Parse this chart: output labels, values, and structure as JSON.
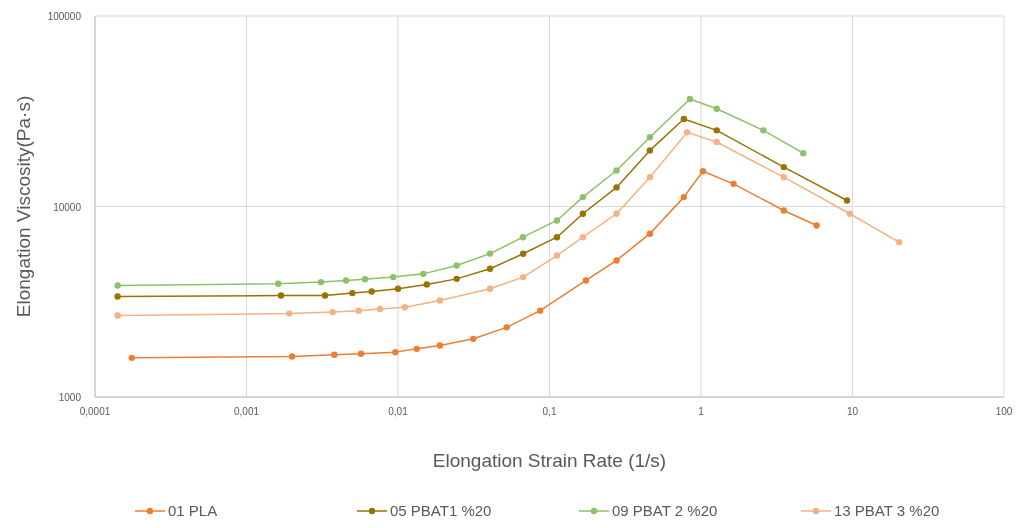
{
  "chart_data": {
    "type": "line",
    "xlabel": "Elongation Strain Rate (1/s)",
    "ylabel": "Elongation Viscosity(Pa·s)",
    "log": "xy",
    "grid": true,
    "legend": "bottom",
    "marker": "circle",
    "line_style": "solid",
    "xlim": [
      0.0001,
      100
    ],
    "xticks": [
      {
        "value": 0.0001,
        "label": "0,0001"
      },
      {
        "value": 0.001,
        "label": "0,001"
      },
      {
        "value": 0.01,
        "label": "0,01"
      },
      {
        "value": 0.1,
        "label": "0,1"
      },
      1,
      10,
      100
    ],
    "ylim": [
      1000,
      100000
    ],
    "yticks": [
      {
        "value": 1000,
        "label": "1000"
      },
      {
        "value": 10000,
        "label": "10000"
      },
      {
        "value": 100000,
        "label": "100000"
      }
    ],
    "series": [
      {
        "name": "01 PLA",
        "color": "#ed7d31",
        "x": [
          0.000175,
          0.002,
          0.0038,
          0.0057,
          0.0096,
          0.0133,
          0.0189,
          0.0314,
          0.0522,
          0.0867,
          0.174,
          0.277,
          0.46,
          0.77,
          1.03,
          1.64,
          3.52,
          5.8
        ],
        "values": [
          1605,
          1633,
          1667,
          1687,
          1720,
          1790,
          1862,
          2020,
          2320,
          2840,
          4090,
          5210,
          7200,
          11200,
          15300,
          13150,
          9530,
          7950
        ]
      },
      {
        "name": "05 PBAT1 %20",
        "color": "#997300",
        "x": [
          0.000141,
          0.00169,
          0.0033,
          0.005,
          0.0067,
          0.01,
          0.0155,
          0.0244,
          0.0405,
          0.067,
          0.112,
          0.166,
          0.277,
          0.46,
          0.77,
          1.27,
          3.52,
          9.2
        ],
        "values": [
          3370,
          3410,
          3410,
          3510,
          3580,
          3700,
          3900,
          4170,
          4710,
          5650,
          6900,
          9160,
          12600,
          19700,
          28800,
          25100,
          16100,
          10750
        ]
      },
      {
        "name": "09 PBAT 2 %20",
        "color": "#8bc168",
        "x": [
          0.000141,
          0.00162,
          0.0031,
          0.00454,
          0.00605,
          0.0093,
          0.0147,
          0.0244,
          0.0405,
          0.0668,
          0.112,
          0.166,
          0.277,
          0.46,
          0.845,
          1.27,
          2.58,
          4.73
        ],
        "values": [
          3850,
          3930,
          4010,
          4090,
          4150,
          4260,
          4430,
          4900,
          5660,
          6900,
          8450,
          11200,
          15450,
          23100,
          36700,
          32600,
          25100,
          19050
        ]
      },
      {
        "name": "13 PBAT 3 %20",
        "color": "#f4b183",
        "x": [
          0.000141,
          0.00192,
          0.0037,
          0.0055,
          0.0076,
          0.0111,
          0.0189,
          0.0405,
          0.067,
          0.112,
          0.166,
          0.277,
          0.46,
          0.81,
          1.27,
          3.52,
          9.6,
          20.3
        ],
        "values": [
          2680,
          2740,
          2790,
          2840,
          2900,
          2960,
          3210,
          3700,
          4260,
          5530,
          6900,
          9160,
          14250,
          24500,
          21800,
          14250,
          9160,
          6500
        ]
      }
    ]
  }
}
